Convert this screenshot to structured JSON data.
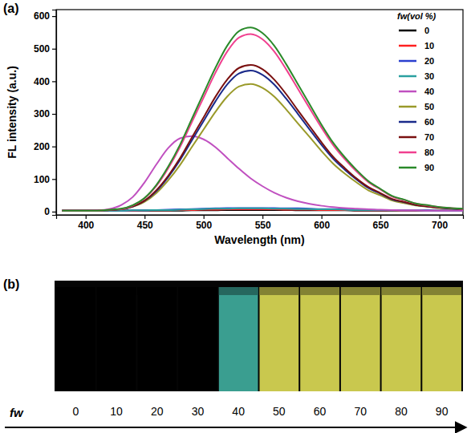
{
  "chart_data": {
    "type": "line",
    "title": "(a)",
    "x_label": "Wavelength (nm)",
    "y_label": "FL intensity (a.u.)",
    "legend_title": "fw(vol %)",
    "legend": "top-right",
    "xlim": [
      375,
      720
    ],
    "xticks": [
      400,
      450,
      500,
      550,
      600,
      650,
      700
    ],
    "ylim": [
      -10,
      620
    ],
    "yticks": [
      0,
      100,
      200,
      300,
      400,
      500,
      600
    ],
    "x": [
      380,
      390,
      400,
      410,
      420,
      430,
      440,
      450,
      460,
      470,
      480,
      490,
      500,
      510,
      520,
      530,
      540,
      550,
      560,
      570,
      580,
      590,
      600,
      610,
      620,
      630,
      640,
      650,
      660,
      670,
      680,
      690,
      700,
      710,
      720
    ],
    "series": [
      {
        "name": "0",
        "color": "#000000",
        "values": [
          3,
          3,
          3,
          3,
          3,
          3,
          3,
          3,
          3,
          3,
          3,
          4,
          4,
          4,
          5,
          5,
          5,
          5,
          5,
          5,
          4,
          4,
          4,
          4,
          4,
          3,
          3,
          3,
          3,
          3,
          3,
          3,
          3,
          3,
          3
        ]
      },
      {
        "name": "10",
        "color": "#ff2020",
        "values": [
          3,
          3,
          3,
          3,
          3,
          3,
          3,
          4,
          4,
          4,
          5,
          5,
          6,
          6,
          7,
          7,
          7,
          7,
          7,
          6,
          6,
          6,
          5,
          5,
          5,
          4,
          4,
          4,
          4,
          3,
          3,
          3,
          3,
          3,
          3
        ]
      },
      {
        "name": "20",
        "color": "#2a3fcf",
        "values": [
          3,
          3,
          3,
          3,
          3,
          3,
          4,
          4,
          5,
          6,
          7,
          8,
          9,
          10,
          11,
          11,
          11,
          11,
          11,
          10,
          10,
          9,
          8,
          8,
          7,
          6,
          6,
          5,
          5,
          4,
          4,
          4,
          3,
          3,
          3
        ]
      },
      {
        "name": "30",
        "color": "#2aa0a0",
        "values": [
          3,
          3,
          3,
          3,
          3,
          3,
          4,
          4,
          5,
          5,
          6,
          7,
          8,
          9,
          9,
          10,
          10,
          10,
          9,
          9,
          8,
          8,
          7,
          7,
          6,
          5,
          5,
          5,
          4,
          4,
          4,
          3,
          3,
          3,
          3
        ]
      },
      {
        "name": "40",
        "color": "#c050c0",
        "values": [
          3,
          3,
          3,
          4,
          8,
          20,
          45,
          90,
          145,
          195,
          225,
          232,
          222,
          198,
          165,
          132,
          102,
          78,
          58,
          43,
          32,
          24,
          18,
          14,
          11,
          9,
          7,
          6,
          5,
          4,
          4,
          3,
          3,
          3,
          3
        ]
      },
      {
        "name": "50",
        "color": "#9a9a2a",
        "values": [
          3,
          3,
          3,
          3,
          5,
          7,
          15,
          30,
          57,
          96,
          143,
          198,
          252,
          306,
          353,
          384,
          392,
          380,
          353,
          314,
          271,
          229,
          186,
          147,
          116,
          89,
          65,
          50,
          34,
          26,
          19,
          15,
          11,
          9,
          7
        ]
      },
      {
        "name": "60",
        "color": "#1a2a8a",
        "values": [
          3,
          3,
          3,
          3,
          5,
          7,
          16,
          33,
          63,
          106,
          158,
          218,
          278,
          338,
          390,
          424,
          433,
          420,
          390,
          347,
          300,
          252,
          205,
          162,
          128,
          98,
          72,
          55,
          37,
          29,
          20,
          16,
          12,
          9,
          7
        ]
      },
      {
        "name": "70",
        "color": "#7a1010",
        "values": [
          3,
          3,
          3,
          3,
          5,
          7,
          16,
          34,
          66,
          110,
          164,
          227,
          289,
          352,
          405,
          441,
          450,
          437,
          405,
          361,
          311,
          262,
          213,
          168,
          133,
          101,
          75,
          57,
          39,
          30,
          21,
          16,
          12,
          10,
          7
        ]
      },
      {
        "name": "80",
        "color": "#f0408f",
        "values": [
          3,
          3,
          3,
          3,
          6,
          8,
          19,
          41,
          79,
          133,
          198,
          274,
          350,
          426,
          491,
          534,
          545,
          529,
          491,
          437,
          377,
          317,
          258,
          204,
          160,
          122,
          90,
          68,
          46,
          36,
          25,
          19,
          14,
          11,
          8
        ]
      },
      {
        "name": "90",
        "color": "#2a8a2a",
        "values": [
          3,
          3,
          3,
          3,
          6,
          9,
          20,
          42,
          82,
          138,
          205,
          284,
          363,
          441,
          509,
          554,
          565,
          548,
          509,
          453,
          391,
          329,
          267,
          211,
          166,
          127,
          93,
          70,
          48,
          37,
          25,
          20,
          14,
          11,
          9
        ]
      }
    ]
  },
  "photo": {
    "label": "(b)",
    "axis_label": "fw",
    "samples": [
      0,
      10,
      20,
      30,
      40,
      50,
      60,
      70,
      80,
      90
    ],
    "colors": [
      "#000000",
      "#000000",
      "#000000",
      "#000000",
      "#3a9e90",
      "#c9c84e",
      "#c9c84e",
      "#c9c84e",
      "#c9c84e",
      "#c9c84e"
    ]
  }
}
